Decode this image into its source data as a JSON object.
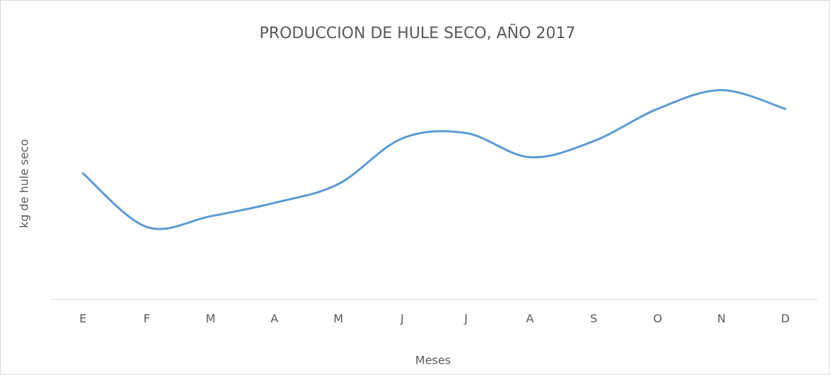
{
  "chart_data": {
    "type": "line",
    "title": "PRODUCCION DE HULE SECO, AÑO 2017",
    "x_label": "Meses",
    "y_label": "kg de hule seco",
    "categories": [
      "E",
      "F",
      "M",
      "A",
      "M",
      "J",
      "J",
      "A",
      "S",
      "O",
      "N",
      "D"
    ],
    "series": [
      {
        "name": "kg de hule seco",
        "color": "#5b9bd5",
        "values": [
          47,
          27,
          31,
          36,
          43,
          60,
          62,
          53,
          59,
          71,
          78,
          71
        ]
      }
    ],
    "ylim": [
      0,
      100
    ],
    "smooth": true
  }
}
